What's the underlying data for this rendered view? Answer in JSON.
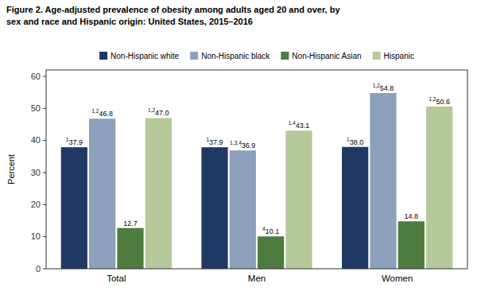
{
  "chart_data": {
    "type": "bar",
    "title": "Figure 2. Age-adjusted prevalence of obesity among adults aged 20 and over, by",
    "subtitle": "sex and race and Hispanic origin: United States, 2015–2016",
    "y_label": "Percent",
    "categories": [
      "Total",
      "Men",
      "Women"
    ],
    "series": [
      {
        "name": "Non-Hispanic white",
        "color": "#1f3864",
        "values": [
          37.9,
          37.9,
          38.0
        ],
        "value_labels": [
          "37.9",
          "37.9",
          "38.0"
        ],
        "footnotes": [
          "1",
          "1",
          "1"
        ]
      },
      {
        "name": "Non-Hispanic black",
        "color": "#8ca0bc",
        "values": [
          46.8,
          36.9,
          54.8
        ],
        "value_labels": [
          "46.8",
          "36.9",
          "54.8"
        ],
        "footnotes": [
          "1,2",
          "1,3,4",
          "1,2"
        ]
      },
      {
        "name": "Non-Hispanic Asian",
        "color": "#4e7c3f",
        "values": [
          12.7,
          10.1,
          14.8
        ],
        "value_labels": [
          "12.7",
          "10.1",
          "14.8"
        ],
        "footnotes": [
          null,
          "4",
          null
        ]
      },
      {
        "name": "Hispanic",
        "color": "#b5c99a",
        "values": [
          47.0,
          43.1,
          50.6
        ],
        "value_labels": [
          "47.0",
          "43.1",
          "50.6"
        ],
        "footnotes": [
          "1,2",
          "1,4",
          "1,2"
        ]
      }
    ],
    "ylim": [
      0,
      62
    ],
    "yticks": [
      0,
      10,
      20,
      30,
      40,
      50,
      60
    ],
    "grid": false,
    "legend": "top",
    "data_labels": true
  }
}
